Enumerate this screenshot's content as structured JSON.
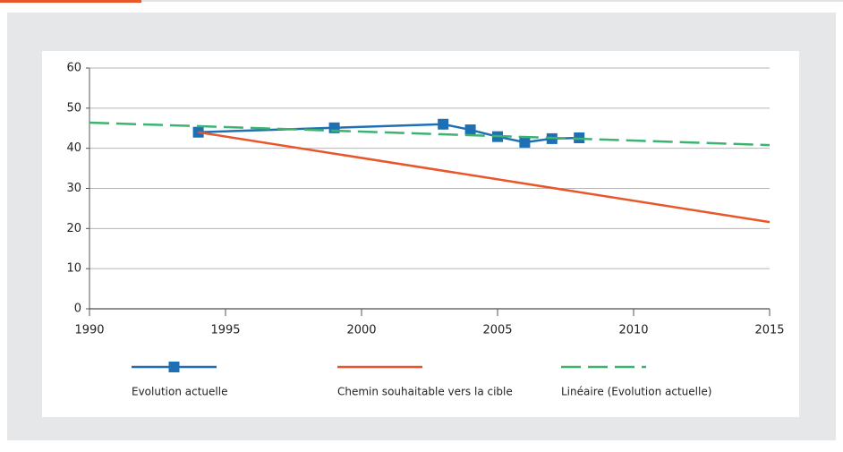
{
  "chart_data": {
    "type": "line",
    "series": [
      {
        "name": "Evolution actuelle",
        "color": "#1f6fb5",
        "marker": "square",
        "dash": false,
        "x": [
          1994,
          1999,
          2003,
          2004,
          2005,
          2006,
          2007,
          2008
        ],
        "values": [
          44,
          45.1,
          46,
          44.6,
          42.9,
          41.5,
          42.4,
          42.6
        ]
      },
      {
        "name": "Chemin souhaitable vers la cible",
        "color": "#e8562a",
        "marker": null,
        "dash": false,
        "x": [
          1994,
          2015
        ],
        "values": [
          44,
          21.6
        ]
      },
      {
        "name": "Linéaire (Evolution actuelle)",
        "color": "#3cb371",
        "marker": null,
        "dash": true,
        "x": [
          1990,
          2015
        ],
        "values": [
          46.4,
          40.8
        ]
      }
    ],
    "xlim": [
      1990,
      2015
    ],
    "xticks": [
      1990,
      1995,
      2000,
      2005,
      2010,
      2015
    ],
    "ylim": [
      0,
      60
    ],
    "yticks": [
      0,
      10,
      20,
      30,
      40,
      50,
      60
    ],
    "grid": true,
    "legend": "bottom"
  }
}
